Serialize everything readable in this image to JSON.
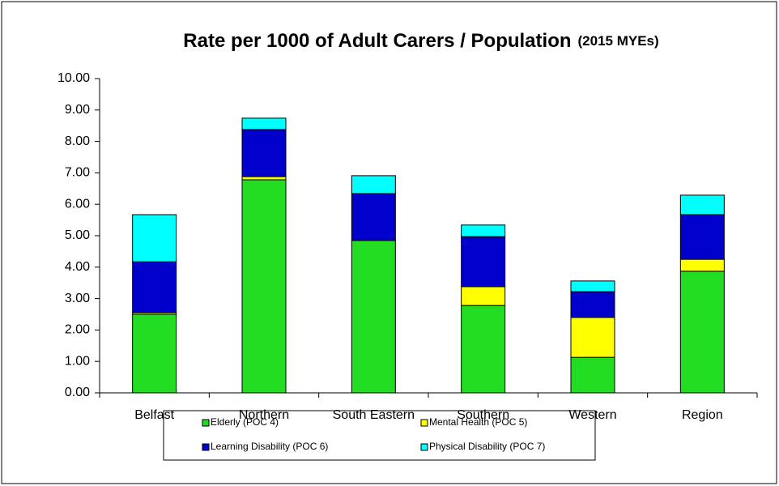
{
  "chart_data": {
    "type": "stacked_bar",
    "title": "Rate per 1000 of Adult Carers / Population",
    "subtitle": "(2015 MYEs)",
    "categories": [
      "Belfast",
      "Northern",
      "South Eastern",
      "Southern",
      "Western",
      "Region"
    ],
    "series": [
      {
        "name": "Elderly (POC 4)",
        "color": "#22dd22",
        "values": [
          2.5,
          6.78,
          4.85,
          2.78,
          1.13,
          3.87
        ]
      },
      {
        "name": "Mental Health (POC 5)",
        "color": "#ffff00",
        "values": [
          0.05,
          0.1,
          0.0,
          0.6,
          1.27,
          0.38
        ]
      },
      {
        "name": "Learning Disability (POC 6)",
        "color": "#0000cc",
        "values": [
          1.62,
          1.5,
          1.49,
          1.59,
          0.82,
          1.42
        ]
      },
      {
        "name": "Physical Disability (POC 7)",
        "color": "#00ffff",
        "values": [
          1.5,
          0.36,
          0.57,
          0.37,
          0.34,
          0.62
        ]
      }
    ],
    "ylim": [
      0,
      10
    ],
    "yticks": [
      {
        "value": 0,
        "label": "0.00"
      },
      {
        "value": 1,
        "label": "1.00"
      },
      {
        "value": 2,
        "label": "2.00"
      },
      {
        "value": 3,
        "label": "3.00"
      },
      {
        "value": 4,
        "label": "4.00"
      },
      {
        "value": 5,
        "label": "5.00"
      },
      {
        "value": 6,
        "label": "6.00"
      },
      {
        "value": 7,
        "label": "7.00"
      },
      {
        "value": 8,
        "label": "8.00"
      },
      {
        "value": 9,
        "label": "9.00"
      },
      {
        "value": 10,
        "label": "10.00"
      }
    ],
    "grid": false
  }
}
